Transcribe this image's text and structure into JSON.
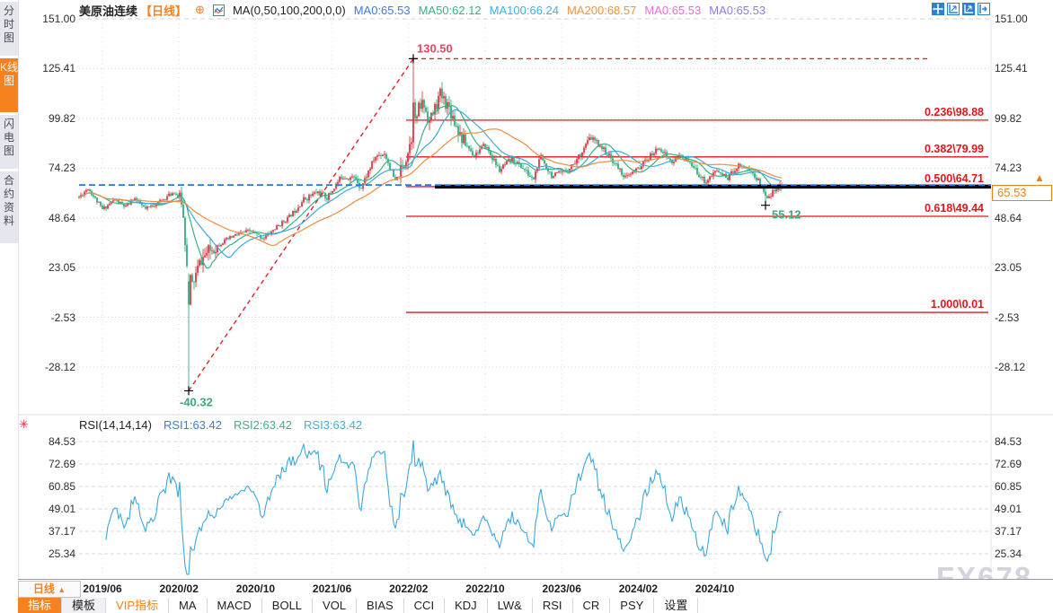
{
  "header": {
    "symbol": "美原油连续",
    "period": "【日线】",
    "add_icon": "⊕",
    "ma_formula": "MA(0,50,100,200,0,0)",
    "ma_values": [
      {
        "text": "MA0:65.53",
        "color": "#3b7dd8"
      },
      {
        "text": "MA50:62.12",
        "color": "#36b381"
      },
      {
        "text": "MA100:66.24",
        "color": "#3fb0e0"
      },
      {
        "text": "MA200:68.57",
        "color": "#f5923e"
      },
      {
        "text": "MA0:65.53",
        "color": "#e070d8"
      },
      {
        "text": "MA0:65.53",
        "color": "#8f7de0"
      }
    ],
    "icons": [
      "crosshair-move",
      "chart-zoom",
      "chart-zoom-filled",
      "collapse-right"
    ]
  },
  "sidebar": {
    "items": [
      {
        "label": "分时图",
        "active": false
      },
      {
        "label": "K线图",
        "active": true
      },
      {
        "label": "闪电图",
        "active": false
      },
      {
        "label": "合约资料",
        "active": false
      }
    ]
  },
  "rsi_header": {
    "formula": "RSI(14,14,14)",
    "values": [
      {
        "text": "RSI1:63.42",
        "color": "#3b7dd8"
      },
      {
        "text": "RSI2:63.42",
        "color": "#36b381"
      },
      {
        "text": "RSI3:63.42",
        "color": "#3fb0e0"
      }
    ],
    "settings_icon": "✳"
  },
  "price_tag": {
    "text": "65.53",
    "arrow": "▲"
  },
  "period_selector": {
    "label": "日线",
    "arrow": "▲"
  },
  "toolbar": {
    "items": [
      {
        "label": "指标",
        "style": "active"
      },
      {
        "label": "模板",
        "style": "muted"
      },
      {
        "label": "VIP指标",
        "style": "vip"
      },
      {
        "label": "MA"
      },
      {
        "label": "MACD"
      },
      {
        "label": "BOLL"
      },
      {
        "label": "VOL"
      },
      {
        "label": "BIAS"
      },
      {
        "label": "CCI"
      },
      {
        "label": "KDJ"
      },
      {
        "label": "LW&"
      },
      {
        "label": "RSI"
      },
      {
        "label": "CR"
      },
      {
        "label": "PSY"
      },
      {
        "label": "设置"
      }
    ]
  },
  "watermark": "FX678",
  "chart_data": {
    "type": "candlestick",
    "title": "美原油连续 日线 (WTI crude continuous, daily)",
    "main_pane": {
      "y_ticks": [
        "151.00",
        "125.41",
        "99.82",
        "74.23",
        "48.64",
        "23.05",
        "-2.53",
        "-28.12"
      ],
      "x_ticks": [
        "2019/06",
        "2020/02",
        "2020/10",
        "2021/06",
        "2022/02",
        "2022/10",
        "2023/06",
        "2024/02",
        "2024/10"
      ],
      "price_anchors_by_month": [
        [
          0.5,
          59
        ],
        [
          1.5,
          64
        ],
        [
          3.0,
          53
        ],
        [
          4.3,
          58
        ],
        [
          5.5,
          54
        ],
        [
          6.3,
          59
        ],
        [
          7.5,
          53
        ],
        [
          9.0,
          57
        ],
        [
          10.5,
          62
        ],
        [
          11.3,
          57
        ],
        [
          11.9,
          22
        ],
        [
          12.4,
          14
        ],
        [
          13.2,
          26
        ],
        [
          14.0,
          31
        ],
        [
          15.5,
          36
        ],
        [
          17.0,
          40
        ],
        [
          18.5,
          42
        ],
        [
          19.8,
          38
        ],
        [
          21.0,
          43
        ],
        [
          22.5,
          49
        ],
        [
          24.0,
          58
        ],
        [
          25.5,
          62
        ],
        [
          26.5,
          59
        ],
        [
          28.0,
          70
        ],
        [
          29.5,
          69
        ],
        [
          30.0,
          64
        ],
        [
          31.5,
          80
        ],
        [
          32.5,
          82
        ],
        [
          33.6,
          67
        ],
        [
          34.5,
          76
        ],
        [
          35.3,
          90
        ],
        [
          36.0,
          104
        ],
        [
          36.5,
          108
        ],
        [
          37.2,
          98
        ],
        [
          38.3,
          112
        ],
        [
          39.2,
          106
        ],
        [
          40.5,
          90
        ],
        [
          41.8,
          81
        ],
        [
          43.0,
          86
        ],
        [
          44.5,
          73
        ],
        [
          45.8,
          79
        ],
        [
          47.0,
          74
        ],
        [
          48.0,
          68
        ],
        [
          48.8,
          80
        ],
        [
          50.0,
          70
        ],
        [
          51.3,
          72
        ],
        [
          52.5,
          78
        ],
        [
          54.0,
          90
        ],
        [
          55.0,
          86
        ],
        [
          56.5,
          77
        ],
        [
          57.7,
          69
        ],
        [
          59.0,
          74
        ],
        [
          60.2,
          80
        ],
        [
          61.2,
          85
        ],
        [
          62.5,
          77
        ],
        [
          63.5,
          81
        ],
        [
          65.0,
          73
        ],
        [
          66.0,
          67
        ],
        [
          67.2,
          73
        ],
        [
          68.3,
          69
        ],
        [
          69.5,
          76
        ],
        [
          70.5,
          74
        ],
        [
          71.5,
          68
        ],
        [
          72.5,
          60
        ],
        [
          73.2,
          62
        ],
        [
          74.0,
          65.53
        ]
      ],
      "key_points": {
        "peak": {
          "label": "130.50",
          "value": 130.5
        },
        "trough": {
          "label": "-40.32",
          "value": -40.32
        },
        "recent_low": {
          "label": "55.12",
          "value": 55.12
        },
        "last_close": 65.53
      },
      "fib_levels": [
        {
          "label": "0.236\\98.88",
          "value": 98.88
        },
        {
          "label": "0.382\\79.99",
          "value": 79.99
        },
        {
          "label": "0.500\\64.71",
          "value": 64.71
        },
        {
          "label": "0.618\\49.44",
          "value": 49.44
        },
        {
          "label": "1.000\\0.01",
          "value": 0.01
        }
      ],
      "current_price": 65.53,
      "drawn_horizontal_line": 64.71,
      "ma_series": [
        {
          "name": "MA50",
          "window": 13,
          "color": "#36b381"
        },
        {
          "name": "MA100",
          "window": 25,
          "color": "#3fa9dc"
        },
        {
          "name": "MA200",
          "window": 50,
          "color": "#f08c3c"
        }
      ],
      "colors": {
        "up": "#e23740",
        "down": "#2fae7d",
        "fib": "#e0161f",
        "trend": "#e02028",
        "current_line": "#2776e8",
        "drawn_line": "#0a0a0a",
        "peak_label": "#ef4260",
        "low_label": "#3aab7e"
      }
    },
    "rsi_pane": {
      "y_ticks": [
        "84.53",
        "72.69",
        "60.85",
        "49.01",
        "37.17",
        "25.34"
      ],
      "period": 14,
      "color": "#3aa8dc",
      "last_value": 63.42
    }
  }
}
